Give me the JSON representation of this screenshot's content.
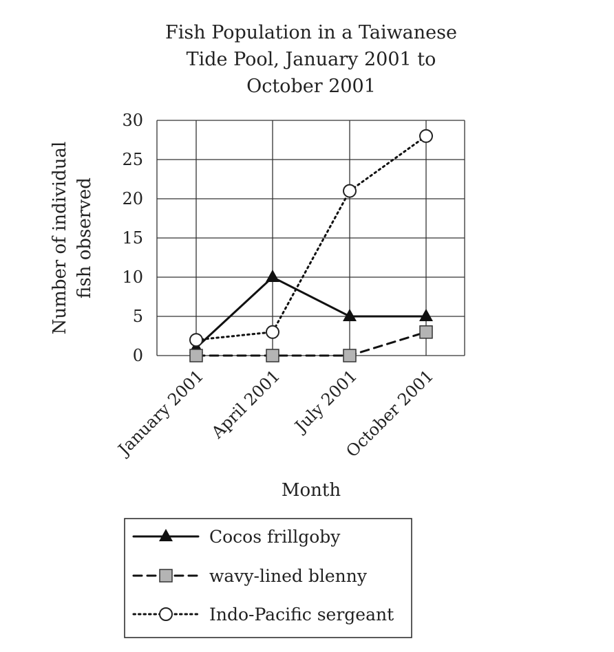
{
  "chart_data": {
    "type": "line",
    "title_lines": [
      "Fish Population in a Taiwanese",
      "Tide Pool, January 2001 to",
      "October 2001"
    ],
    "categories": [
      "January 2001",
      "April 2001",
      "July 2001",
      "October 2001"
    ],
    "xlabel": "Month",
    "ylabel_lines": [
      "Number of individual",
      "fish observed"
    ],
    "ylim": [
      0,
      30
    ],
    "yticks": [
      0,
      5,
      10,
      15,
      20,
      25,
      30
    ],
    "grid": true,
    "legend_position": "bottom",
    "series": [
      {
        "name": "Cocos frillgoby",
        "values": [
          1,
          10,
          5,
          5
        ],
        "line_style": "solid",
        "marker": "triangle"
      },
      {
        "name": "wavy-lined blenny",
        "values": [
          0,
          0,
          0,
          3
        ],
        "line_style": "dashed",
        "marker": "square"
      },
      {
        "name": "Indo-Pacific sergeant",
        "values": [
          2,
          3,
          21,
          28
        ],
        "line_style": "dotted",
        "marker": "circle"
      }
    ]
  }
}
